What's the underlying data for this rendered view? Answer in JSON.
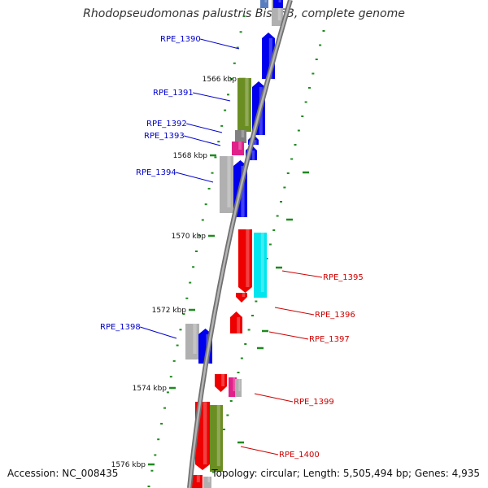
{
  "title": "Rhodopseudomonas palustris BisA53, complete genome",
  "accession": "Accession: NC_008435",
  "topology": "Topology: circular; Length: 5,505,494 bp; Genes: 4,935",
  "colors": {
    "forward_label": "#0000cc",
    "reverse_label": "#cc0000",
    "backbone": "#8c8c8c",
    "tick": "#1f8a1f",
    "blue": "#0000ee",
    "red": "#ee0000",
    "olive": "#6b8e23",
    "gray": "#b0b0b0",
    "magenta": "#e0218a",
    "cyan": "#00e5ee",
    "steel": "#5a7fbf"
  },
  "kbp_labels": [
    "1566 kbp",
    "1568 kbp",
    "1570 kbp",
    "1572 kbp",
    "1574 kbp",
    "1576 kbp"
  ],
  "gene_labels": {
    "forward": [
      "RPE_1390",
      "RPE_1391",
      "RPE_1392",
      "RPE_1393",
      "RPE_1394",
      "RPE_1398"
    ],
    "reverse": [
      "RPE_1395",
      "RPE_1396",
      "RPE_1397",
      "RPE_1399",
      "RPE_1400"
    ]
  }
}
